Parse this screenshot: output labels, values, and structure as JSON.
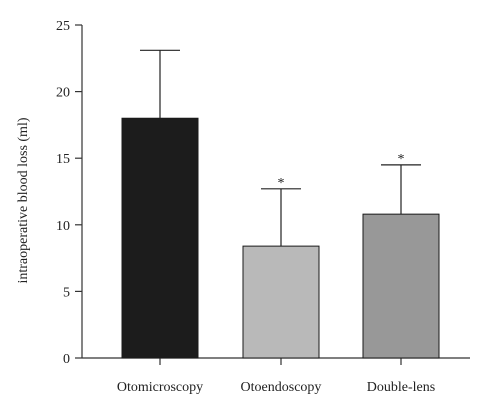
{
  "chart_data": {
    "type": "bar",
    "categories": [
      "Otomicroscopy",
      "Otoendoscopy",
      "Double-lens"
    ],
    "values": [
      18.0,
      8.4,
      10.8
    ],
    "error_upper": [
      5.1,
      4.3,
      3.7
    ],
    "significance": [
      "",
      "*",
      "*"
    ],
    "bar_colors": [
      "#1c1c1c",
      "#b9b9b9",
      "#989898"
    ],
    "title": "",
    "xlabel": "",
    "ylabel": "intraoperative blood loss (ml)",
    "ylim": [
      0,
      25
    ],
    "yticks": [
      0,
      5,
      10,
      15,
      20,
      25
    ],
    "grid": false
  }
}
